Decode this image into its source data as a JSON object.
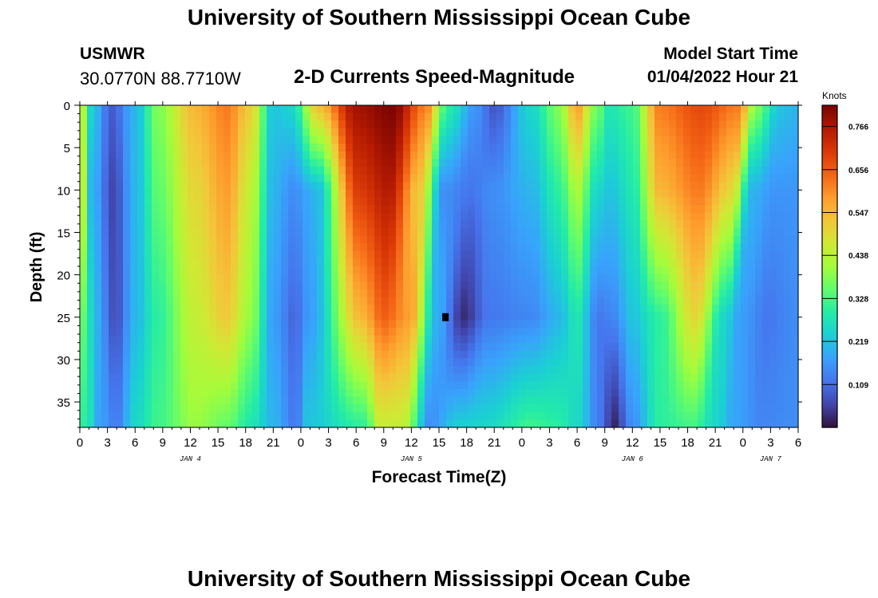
{
  "header": {
    "title": "University of Southern Mississippi Ocean Cube",
    "station_name": "USMWR",
    "station_coords": "30.0770N  88.7710W",
    "subtitle": "2-D Currents Speed-Magnitude",
    "model_start_label": "Model Start Time",
    "model_start_value": "01/04/2022 Hour 21"
  },
  "footer": {
    "title": "University of Southern Mississippi Ocean Cube"
  },
  "chart_data": {
    "type": "heatmap",
    "title": "2-D Currents Speed-Magnitude",
    "xlabel": "Forecast Time(Z)",
    "ylabel": "Depth (ft)",
    "x_range_hours": [
      0,
      78
    ],
    "x_tick_labels": [
      "0",
      "3",
      "6",
      "9",
      "12",
      "15",
      "18",
      "21",
      "0",
      "3",
      "6",
      "9",
      "12",
      "15",
      "18",
      "21",
      "0",
      "3",
      "6",
      "9",
      "12",
      "15",
      "18",
      "21",
      "0",
      "3",
      "6"
    ],
    "x_date_labels": [
      {
        "label": "JAN 4",
        "hour": 12
      },
      {
        "label": "JAN 5",
        "hour": 36
      },
      {
        "label": "JAN 6",
        "hour": 60
      },
      {
        "label": "JAN 7",
        "hour": 75
      }
    ],
    "y_range": [
      0,
      38
    ],
    "y_ticks": [
      0,
      5,
      10,
      15,
      20,
      25,
      30,
      35
    ],
    "colorbar": {
      "label": "Knots",
      "min": 0,
      "max": 0.82,
      "ticks": [
        "0.766",
        "0.656",
        "0.547",
        "0.438",
        "0.328",
        "0.219",
        "0.109"
      ],
      "tick_values": [
        0.766,
        0.656,
        0.547,
        0.438,
        0.328,
        0.219,
        0.109
      ]
    },
    "colors": [
      "#30123b",
      "#4145ab",
      "#4675ed",
      "#39a2fc",
      "#1bcfd4",
      "#24eca6",
      "#61fc6c",
      "#a4fc3b",
      "#d1e834",
      "#f3c63a",
      "#fe9b2d",
      "#f36315",
      "#d93806",
      "#b11901",
      "#7a0402"
    ],
    "speed_bands": [
      {
        "t0": 0.0,
        "t1": 0.7,
        "vals": [
          0.5,
          0.45,
          0.35,
          0.3
        ]
      },
      {
        "t0": 1.0,
        "t1": 2.0,
        "vals": [
          0.25,
          0.2,
          0.2,
          0.18
        ]
      },
      {
        "t0": 3.5,
        "t1": 4.0,
        "vals": [
          0.09,
          0.06,
          0.07,
          0.13
        ]
      },
      {
        "t0": 6.0,
        "t1": 6.0,
        "vals": [
          0.2,
          0.2,
          0.2,
          0.25
        ]
      },
      {
        "t0": 8.5,
        "t1": 8.5,
        "vals": [
          0.38,
          0.35,
          0.3,
          0.32
        ]
      },
      {
        "t0": 12.5,
        "t1": 12.5,
        "vals": [
          0.55,
          0.5,
          0.45,
          0.4
        ]
      },
      {
        "t0": 16.0,
        "t1": 16.0,
        "vals": [
          0.62,
          0.58,
          0.52,
          0.35
        ]
      },
      {
        "t0": 18.5,
        "t1": 18.5,
        "vals": [
          0.52,
          0.45,
          0.4,
          0.28
        ]
      },
      {
        "t0": 21.0,
        "t1": 21.0,
        "vals": [
          0.22,
          0.2,
          0.17,
          0.2
        ]
      },
      {
        "t0": 23.0,
        "t1": 23.5,
        "vals": [
          0.25,
          0.15,
          0.1,
          0.12
        ]
      },
      {
        "t0": 26.0,
        "t1": 24.5,
        "vals": [
          0.55,
          0.2,
          0.17,
          0.22
        ]
      },
      {
        "t0": 30.0,
        "t1": 31.0,
        "vals": [
          0.78,
          0.7,
          0.55,
          0.3
        ]
      },
      {
        "t0": 34.0,
        "t1": 32.5,
        "vals": [
          0.82,
          0.76,
          0.65,
          0.45
        ]
      },
      {
        "t0": 37.5,
        "t1": 35.0,
        "vals": [
          0.62,
          0.52,
          0.58,
          0.45
        ]
      },
      {
        "t0": 40.0,
        "t1": 38.0,
        "vals": [
          0.3,
          0.15,
          0.2,
          0.15
        ]
      },
      {
        "t0": 43.0,
        "t1": 41.0,
        "vals": [
          0.16,
          0.12,
          0.03,
          0.24
        ]
      },
      {
        "t0": 45.0,
        "t1": 44.0,
        "vals": [
          0.08,
          0.15,
          0.12,
          0.25
        ]
      },
      {
        "t0": 49.0,
        "t1": 49.0,
        "vals": [
          0.25,
          0.2,
          0.14,
          0.32
        ]
      },
      {
        "t0": 52.0,
        "t1": 52.0,
        "vals": [
          0.38,
          0.3,
          0.2,
          0.3
        ]
      },
      {
        "t0": 54.0,
        "t1": 54.0,
        "vals": [
          0.58,
          0.42,
          0.28,
          0.25
        ]
      },
      {
        "t0": 56.0,
        "t1": 56.5,
        "vals": [
          0.38,
          0.25,
          0.12,
          0.12
        ]
      },
      {
        "t0": 57.5,
        "t1": 58.0,
        "vals": [
          0.28,
          0.22,
          0.14,
          0.02
        ]
      },
      {
        "t0": 60.0,
        "t1": 60.0,
        "vals": [
          0.32,
          0.28,
          0.22,
          0.15
        ]
      },
      {
        "t0": 63.0,
        "t1": 63.0,
        "vals": [
          0.62,
          0.55,
          0.3,
          0.3
        ]
      },
      {
        "t0": 67.5,
        "t1": 66.5,
        "vals": [
          0.68,
          0.62,
          0.5,
          0.32
        ]
      },
      {
        "t0": 71.5,
        "t1": 69.0,
        "vals": [
          0.62,
          0.5,
          0.25,
          0.25
        ]
      },
      {
        "t0": 73.5,
        "t1": 71.0,
        "vals": [
          0.38,
          0.2,
          0.17,
          0.18
        ]
      },
      {
        "t0": 76.0,
        "t1": 74.0,
        "vals": [
          0.22,
          0.16,
          0.12,
          0.14
        ]
      },
      {
        "t0": 78.0,
        "t1": 78.0,
        "vals": [
          0.2,
          0.16,
          0.15,
          0.15
        ]
      }
    ]
  }
}
